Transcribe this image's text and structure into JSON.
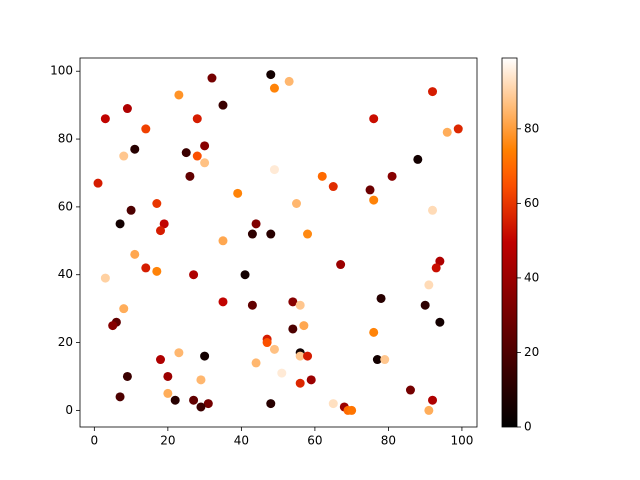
{
  "chart_data": {
    "type": "scatter",
    "x": [
      48,
      32,
      53,
      49,
      23,
      92,
      9,
      35,
      3,
      28,
      76,
      14,
      96,
      99,
      8,
      11,
      25,
      28,
      30,
      30,
      49,
      88,
      1,
      26,
      62,
      65,
      75,
      81,
      76,
      39,
      10,
      17,
      55,
      92,
      7,
      19,
      18,
      43,
      44,
      48,
      35,
      58,
      11,
      14,
      17,
      27,
      41,
      67,
      94,
      93,
      3,
      91,
      78,
      35,
      43,
      54,
      56,
      90,
      8,
      94,
      99,
      6,
      5,
      54,
      57,
      76,
      47,
      47,
      49,
      23,
      18,
      30,
      56,
      56,
      58,
      77,
      79,
      44,
      51,
      9,
      20,
      59,
      56,
      86,
      20,
      7,
      22,
      27,
      29,
      31,
      29,
      48,
      54,
      65,
      68,
      69,
      70,
      91,
      92
    ],
    "values": [
      99,
      98,
      97,
      95,
      93,
      94,
      89,
      90,
      86,
      86,
      86,
      83,
      82,
      83,
      75,
      77,
      76,
      75,
      78,
      73,
      71,
      74,
      67,
      69,
      69,
      66,
      65,
      69,
      62,
      64,
      59,
      61,
      61,
      59,
      55,
      55,
      53,
      52,
      55,
      52,
      50,
      52,
      46,
      42,
      41,
      40,
      40,
      43,
      44,
      42,
      39,
      37,
      33,
      32,
      31,
      32,
      31,
      31,
      30,
      26,
      26,
      26,
      25,
      24,
      25,
      23,
      21,
      20,
      18,
      17,
      15,
      16,
      17,
      16,
      16,
      15,
      15,
      14,
      11,
      10,
      10,
      9,
      8,
      6,
      5,
      4,
      3,
      3,
      9,
      2,
      1,
      2,
      2,
      2,
      1,
      0,
      0,
      0,
      3
    ],
    "c": [
      5,
      30,
      85,
      75,
      78,
      55,
      45,
      15,
      50,
      55,
      52,
      62,
      83,
      57,
      88,
      10,
      15,
      65,
      35,
      87,
      95,
      5,
      55,
      25,
      70,
      58,
      28,
      35,
      75,
      75,
      20,
      60,
      85,
      92,
      5,
      50,
      55,
      12,
      33,
      10,
      82,
      76,
      82,
      55,
      75,
      45,
      5,
      40,
      45,
      52,
      90,
      92,
      10,
      50,
      25,
      35,
      88,
      12,
      83,
      5,
      99,
      25,
      35,
      20,
      82,
      75,
      55,
      65,
      87,
      85,
      45,
      5,
      5,
      88,
      55,
      5,
      88,
      85,
      95,
      15,
      40,
      40,
      57,
      30,
      83,
      20,
      10,
      25,
      85,
      30,
      15,
      10,
      99,
      93,
      40,
      70,
      72,
      83,
      45
    ],
    "colormap": "gist_heat",
    "clim": [
      0,
      99
    ],
    "xlim": [
      -3.9,
      104.1
    ],
    "ylim": [
      -4.9,
      103.9
    ],
    "xticks": [
      0,
      20,
      40,
      60,
      80,
      100
    ],
    "yticks": [
      0,
      20,
      40,
      60,
      80,
      100
    ],
    "cticks": [
      0,
      20,
      40,
      60,
      80
    ]
  }
}
